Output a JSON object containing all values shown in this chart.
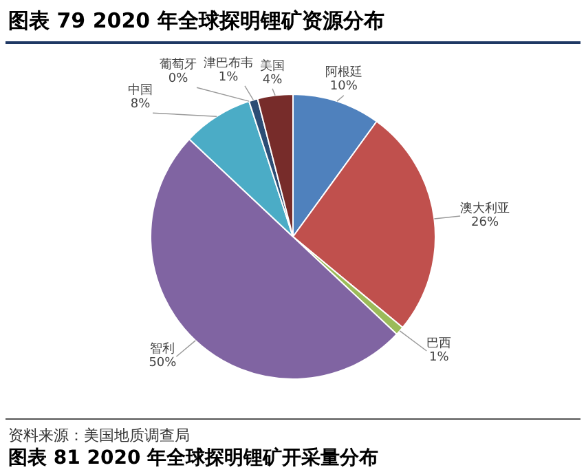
{
  "chart_data": {
    "type": "pie",
    "title": "图表 79 2020 年全球探明锂矿资源分布",
    "categories": [
      "阿根廷",
      "澳大利亚",
      "巴西",
      "智利",
      "中国",
      "葡萄牙",
      "津巴布韦",
      "美国"
    ],
    "values": [
      10,
      26,
      1,
      50,
      8,
      0,
      1,
      4
    ],
    "colors": [
      "#4f81bd",
      "#c0504d",
      "#9bbb59",
      "#8064a2",
      "#4bacc6",
      "#f79646",
      "#2c4d75",
      "#772c2a"
    ],
    "value_labels": [
      "10%",
      "26%",
      "1%",
      "50%",
      "8%",
      "0%",
      "1%",
      "4%"
    ],
    "legend": false,
    "annotations": [
      "资料来源：美国地质调查局",
      "图表 81 2020 年全球探明锂矿开采量分布"
    ]
  }
}
